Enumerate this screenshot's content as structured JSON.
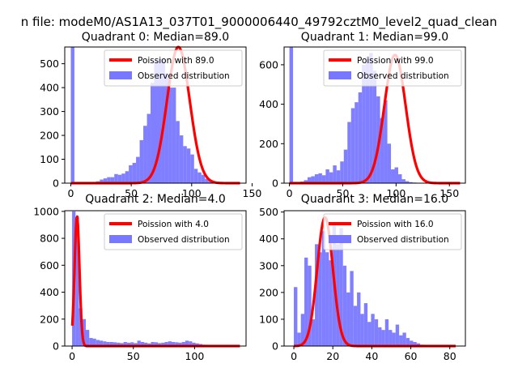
{
  "figure": {
    "suptitle": "n file: modeM0/AS1A13_037T01_9000006440_49792cztM0_level2_quad_clean"
  },
  "colors": {
    "bars": "#7878ff",
    "poisson": "#ff0000",
    "axes": "#000000",
    "background": "#ffffff"
  },
  "chart_data": [
    {
      "type": "bar",
      "title": "Quadrant 0: Median=89.0",
      "median": 89.0,
      "xlim": [
        -5,
        145
      ],
      "ylim": [
        0,
        570
      ],
      "xticks": [
        0,
        50,
        100,
        150
      ],
      "yticks": [
        0,
        100,
        200,
        300,
        400,
        500
      ],
      "bin_start": 0,
      "bin_width": 3,
      "values": [
        570,
        2,
        2,
        3,
        4,
        5,
        5,
        8,
        15,
        20,
        25,
        25,
        38,
        35,
        40,
        50,
        75,
        85,
        110,
        180,
        240,
        290,
        420,
        510,
        520,
        520,
        460,
        400,
        400,
        260,
        200,
        155,
        145,
        120,
        60,
        45,
        35,
        18,
        10,
        6,
        4,
        2,
        2,
        1,
        1,
        1,
        1,
        0
      ],
      "legend": [
        "Poission with 89.0",
        "Observed distribution"
      ],
      "poisson_peak": 570
    },
    {
      "type": "bar",
      "title": "Quadrant 1: Median=99.0",
      "median": 99.0,
      "xlim": [
        -5,
        165
      ],
      "ylim": [
        0,
        690
      ],
      "xticks": [
        0,
        50,
        100,
        150
      ],
      "yticks": [
        0,
        200,
        400,
        600
      ],
      "bin_start": 0,
      "bin_width": 3.4,
      "values": [
        690,
        5,
        5,
        8,
        15,
        30,
        35,
        45,
        50,
        40,
        70,
        55,
        90,
        65,
        110,
        170,
        310,
        380,
        410,
        460,
        600,
        640,
        660,
        570,
        440,
        330,
        420,
        200,
        70,
        80,
        45,
        20,
        10,
        5,
        3,
        2,
        1,
        1,
        0,
        0,
        0,
        0,
        0,
        0,
        0,
        0,
        0,
        0
      ],
      "legend": [
        "Poission with 99.0",
        "Observed distribution"
      ],
      "poisson_peak": 650
    },
    {
      "type": "bar",
      "title": "Quadrant 2: Median=4.0",
      "median": 4.0,
      "xlim": [
        -6,
        142
      ],
      "ylim": [
        0,
        1005
      ],
      "xticks": [
        0,
        50,
        100
      ],
      "yticks": [
        0,
        200,
        400,
        600,
        800,
        1000
      ],
      "bin_start": 0,
      "bin_width": 2.8,
      "values": [
        1000,
        960,
        280,
        200,
        120,
        60,
        55,
        45,
        40,
        35,
        30,
        30,
        28,
        25,
        22,
        30,
        25,
        28,
        22,
        40,
        30,
        25,
        20,
        30,
        28,
        22,
        25,
        30,
        35,
        30,
        28,
        25,
        30,
        40,
        35,
        25,
        20,
        15,
        10,
        8,
        5,
        3,
        2,
        2,
        1,
        1,
        1,
        0
      ],
      "legend": [
        "Poission with 4.0",
        "Observed distribution"
      ],
      "poisson_peak": 965
    },
    {
      "type": "bar",
      "title": "Quadrant 3: Median=16.0",
      "median": 16.0,
      "xlim": [
        -5,
        88
      ],
      "ylim": [
        0,
        505
      ],
      "xticks": [
        0,
        20,
        40,
        60,
        80
      ],
      "yticks": [
        0,
        100,
        200,
        300,
        400,
        500
      ],
      "bin_start": 0,
      "bin_width": 1.8,
      "values": [
        220,
        50,
        120,
        330,
        300,
        100,
        380,
        350,
        430,
        350,
        320,
        460,
        380,
        440,
        300,
        200,
        280,
        150,
        200,
        120,
        160,
        90,
        120,
        100,
        70,
        60,
        100,
        60,
        50,
        80,
        40,
        50,
        30,
        20,
        15,
        10,
        5,
        3,
        2,
        1,
        1,
        0,
        0,
        0,
        0,
        0,
        0
      ],
      "legend": [
        "Poission with 16.0",
        "Observed distribution"
      ],
      "poisson_peak": 480
    }
  ]
}
